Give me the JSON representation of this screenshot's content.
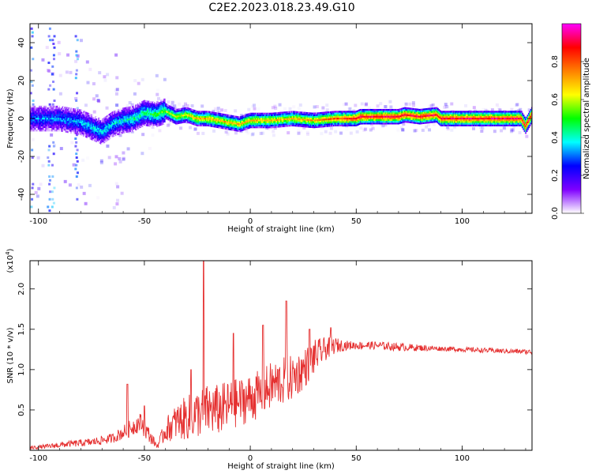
{
  "title": "C2E2.2023.018.23.49.G10",
  "chart_data": [
    {
      "type": "heatmap",
      "xlabel": "Height of straight line (km)",
      "ylabel": "Frequency (Hz)",
      "xlim": [
        -104,
        133
      ],
      "ylim": [
        -50,
        50
      ],
      "xticks": [
        -100,
        -50,
        0,
        50,
        100
      ],
      "yticks": [
        -40,
        -20,
        0,
        20,
        40
      ],
      "colorbar": {
        "label": "Normalized spectral amplitude",
        "range": [
          0,
          1
        ],
        "ticks": [
          "0.0",
          "0.2",
          "0.4",
          "0.6",
          "0.8"
        ],
        "colors": [
          "#ffffff",
          "#7f00ff",
          "#0000ff",
          "#00ffff",
          "#00ff00",
          "#ffff00",
          "#ff8000",
          "#ff0000",
          "#ff00ff"
        ]
      },
      "ridge": {
        "description_points": [
          [
            -100,
            0
          ],
          [
            -90,
            0
          ],
          [
            -80,
            -2
          ],
          [
            -70,
            -7
          ],
          [
            -65,
            -3
          ],
          [
            -60,
            -1
          ],
          [
            -55,
            0
          ],
          [
            -50,
            3
          ],
          [
            -45,
            2
          ],
          [
            -40,
            4
          ],
          [
            -35,
            1
          ],
          [
            -30,
            2
          ],
          [
            -25,
            0
          ],
          [
            -20,
            0
          ],
          [
            -10,
            -2
          ],
          [
            -5,
            -3
          ],
          [
            0,
            -1
          ],
          [
            10,
            -1
          ],
          [
            20,
            0
          ],
          [
            30,
            -1
          ],
          [
            40,
            0
          ],
          [
            50,
            0
          ],
          [
            52,
            1
          ],
          [
            60,
            1
          ],
          [
            70,
            1
          ],
          [
            73,
            2
          ],
          [
            80,
            1
          ],
          [
            88,
            2
          ],
          [
            90,
            0
          ],
          [
            100,
            0
          ],
          [
            120,
            0
          ],
          [
            128,
            0
          ],
          [
            130,
            -4
          ],
          [
            133,
            2
          ]
        ],
        "colors_by_x": [
          [
            -104,
            0.3
          ],
          [
            -60,
            0.4
          ],
          [
            -45,
            0.5
          ],
          [
            -25,
            0.7
          ],
          [
            30,
            0.7
          ],
          [
            50,
            0.9
          ],
          [
            133,
            0.9
          ]
        ]
      }
    },
    {
      "type": "line",
      "xlabel": "Height of straight line (km)",
      "ylabel": "SNR (10 * v/v)",
      "yscale_label": "(x10",
      "yscale_exp": "4",
      "yscale_close": ")",
      "xlim": [
        -104,
        133
      ],
      "ylim": [
        0,
        2.35
      ],
      "xticks": [
        -100,
        -50,
        0,
        50,
        100
      ],
      "yticks": [
        "0.5",
        "1.0",
        "1.5",
        "2.0"
      ],
      "ytick_values": [
        0.5,
        1.0,
        1.5,
        2.0
      ],
      "color": "#e53030",
      "envelope": {
        "x": [
          -104,
          -95,
          -85,
          -75,
          -65,
          -58,
          -52,
          -48,
          -44,
          -40,
          -35,
          -30,
          -25,
          -20,
          -15,
          -10,
          -5,
          0,
          5,
          10,
          15,
          20,
          25,
          30,
          35,
          40,
          45,
          50,
          60,
          70,
          80,
          90,
          100,
          110,
          120,
          133
        ],
        "mean": [
          0.03,
          0.05,
          0.08,
          0.1,
          0.15,
          0.25,
          0.35,
          0.2,
          0.05,
          0.25,
          0.35,
          0.4,
          0.45,
          0.5,
          0.5,
          0.55,
          0.6,
          0.65,
          0.7,
          0.8,
          0.85,
          0.9,
          1.0,
          1.15,
          1.25,
          1.3,
          1.3,
          1.3,
          1.3,
          1.28,
          1.27,
          1.26,
          1.25,
          1.24,
          1.23,
          1.22
        ],
        "noise": [
          0.02,
          0.03,
          0.04,
          0.05,
          0.06,
          0.1,
          0.12,
          0.1,
          0.03,
          0.15,
          0.22,
          0.28,
          0.3,
          0.32,
          0.32,
          0.32,
          0.3,
          0.3,
          0.3,
          0.3,
          0.3,
          0.28,
          0.25,
          0.22,
          0.15,
          0.1,
          0.06,
          0.05,
          0.05,
          0.05,
          0.04,
          0.03,
          0.03,
          0.03,
          0.03,
          0.03
        ]
      },
      "peaks": [
        {
          "x": -58,
          "y": 0.82
        },
        {
          "x": -50,
          "y": 0.55
        },
        {
          "x": -28,
          "y": 1.0
        },
        {
          "x": -22,
          "y": 2.35
        },
        {
          "x": -8,
          "y": 1.45
        },
        {
          "x": 6,
          "y": 1.55
        },
        {
          "x": 17,
          "y": 1.85
        },
        {
          "x": 28,
          "y": 1.5
        },
        {
          "x": 38,
          "y": 1.52
        }
      ]
    }
  ]
}
